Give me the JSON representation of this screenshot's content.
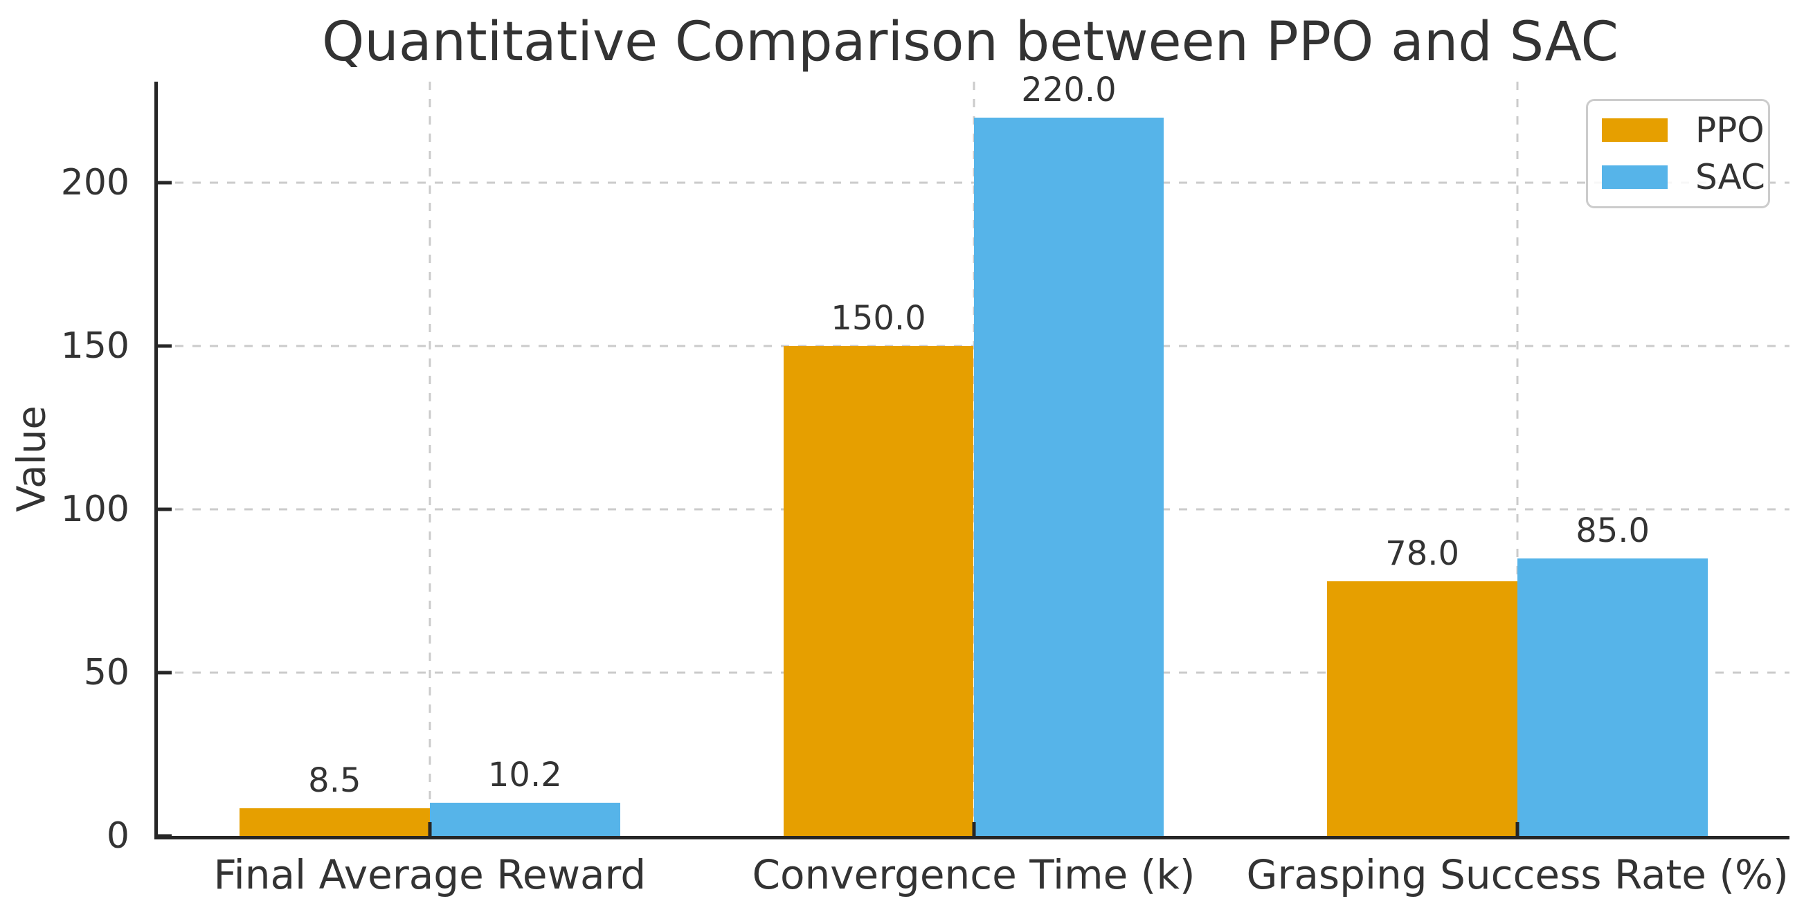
{
  "figure": {
    "background": "#ffffff",
    "text_color": "#333333",
    "spine_color": "#262626",
    "grid_color": "#cbcbcb"
  },
  "chart_data": {
    "type": "bar",
    "title": "Quantitative Comparison between PPO and SAC",
    "xlabel": "",
    "ylabel": "Value",
    "categories": [
      "Final Average Reward",
      "Convergence Time (k)",
      "Grasping Success Rate (%)"
    ],
    "series": [
      {
        "name": "PPO",
        "color": "#E69F00",
        "values": [
          8.5,
          150.0,
          78.0
        ],
        "labels": [
          "8.5",
          "150.0",
          "78.0"
        ]
      },
      {
        "name": "SAC",
        "color": "#56B4E9",
        "values": [
          10.2,
          220.0,
          85.0
        ],
        "labels": [
          "10.2",
          "220.0",
          "85.0"
        ]
      }
    ],
    "yticks": [
      0,
      50,
      100,
      150,
      200
    ],
    "ylim": [
      0,
      231
    ],
    "bar_width_fraction": 0.35,
    "grid": "dashed, horizontal and vertical, behind bars",
    "tick_direction": "in",
    "legend_position": "upper right"
  }
}
